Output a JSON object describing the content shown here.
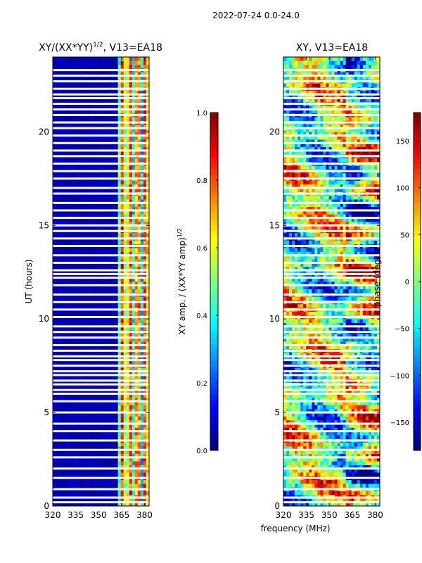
{
  "figure_title": "2022-07-24 0.0-24.0",
  "colors": {
    "jet": [
      "#00007f",
      "#0000ff",
      "#007fff",
      "#00ffff",
      "#7fff7f",
      "#ffff00",
      "#ff7f00",
      "#ff0000",
      "#7f0000"
    ],
    "background": "#ffffff",
    "gap": "#ffffff"
  },
  "chart_data": [
    {
      "type": "heatmap",
      "title_main": "XY/(XX*YY)",
      "title_sup": "1/2",
      "title_rest": ", V13=EA18",
      "xlabel": "",
      "ylabel": "UT (hours)",
      "xlim": [
        320,
        383
      ],
      "ylim": [
        0,
        24
      ],
      "x_ticks": [
        320,
        335,
        350,
        365,
        380
      ],
      "y_ticks": [
        0,
        5,
        10,
        15,
        20
      ],
      "quantity": "normalized XY amplitude",
      "colorbar": {
        "label_main": "XY amp. / (XX*YY amp)",
        "label_sup": "1/2",
        "range": [
          0.0,
          1.0
        ],
        "ticks": [
          "0.0",
          "0.2",
          "0.4",
          "0.6",
          "0.8",
          "1.0"
        ]
      },
      "flagged_ut_hours": [
        0.2,
        0.45,
        0.9,
        1.5,
        2.0,
        2.6,
        3.0,
        3.5,
        4.0,
        4.4,
        5.0,
        5.6,
        6.0,
        6.2,
        6.5,
        6.7,
        7.0,
        7.2,
        7.5,
        7.8,
        8.0,
        8.3,
        8.6,
        9.0,
        9.3,
        9.6,
        10.1,
        10.5,
        10.9,
        11.3,
        11.8,
        12.2,
        12.4,
        12.6,
        13.0,
        13.4,
        13.9,
        14.3,
        14.7,
        15.0,
        15.4,
        15.8,
        16.2,
        16.7,
        17.0,
        17.5,
        17.9,
        18.3,
        18.7,
        19.0,
        19.4,
        19.8,
        20.2,
        20.5,
        20.9,
        21.2,
        21.5,
        21.8,
        22.0,
        22.3,
        22.7,
        23.0,
        23.3
      ]
    },
    {
      "type": "heatmap",
      "title_main": "XY, V13=EA18",
      "title_sup": "",
      "title_rest": "",
      "xlabel": "frequency (MHz)",
      "ylabel": "",
      "xlim": [
        320,
        383
      ],
      "ylim": [
        0,
        24
      ],
      "x_ticks": [
        320,
        335,
        350,
        365,
        380
      ],
      "y_ticks": [
        0,
        5,
        10,
        15,
        20
      ],
      "quantity": "XY phase",
      "colorbar": {
        "label_main": "phase (deg)",
        "label_sup": "",
        "range": [
          -180,
          180
        ],
        "ticks": [
          "−150",
          "−100",
          "−50",
          "0",
          "50",
          "100",
          "150"
        ]
      },
      "flagged_ut_hours": [
        0.2,
        0.45,
        0.9,
        1.5,
        2.0,
        2.6,
        3.0,
        3.5,
        4.0,
        4.4,
        5.0,
        5.6,
        6.0,
        6.2,
        6.5,
        6.7,
        7.0,
        7.2,
        7.5,
        7.8,
        8.0,
        8.3,
        8.6,
        9.0,
        9.3,
        9.6,
        10.1,
        10.5,
        10.9,
        11.3,
        11.8,
        12.2,
        12.4,
        12.6,
        13.0,
        13.4,
        13.9,
        14.3,
        14.7,
        15.0,
        15.4,
        15.8,
        16.2,
        16.7,
        17.0,
        17.5,
        17.9,
        18.3,
        18.7,
        19.0,
        19.4,
        19.8,
        20.2,
        20.5,
        20.9,
        21.2,
        21.5,
        21.8,
        22.0,
        22.3,
        22.7,
        23.0,
        23.3
      ]
    }
  ]
}
